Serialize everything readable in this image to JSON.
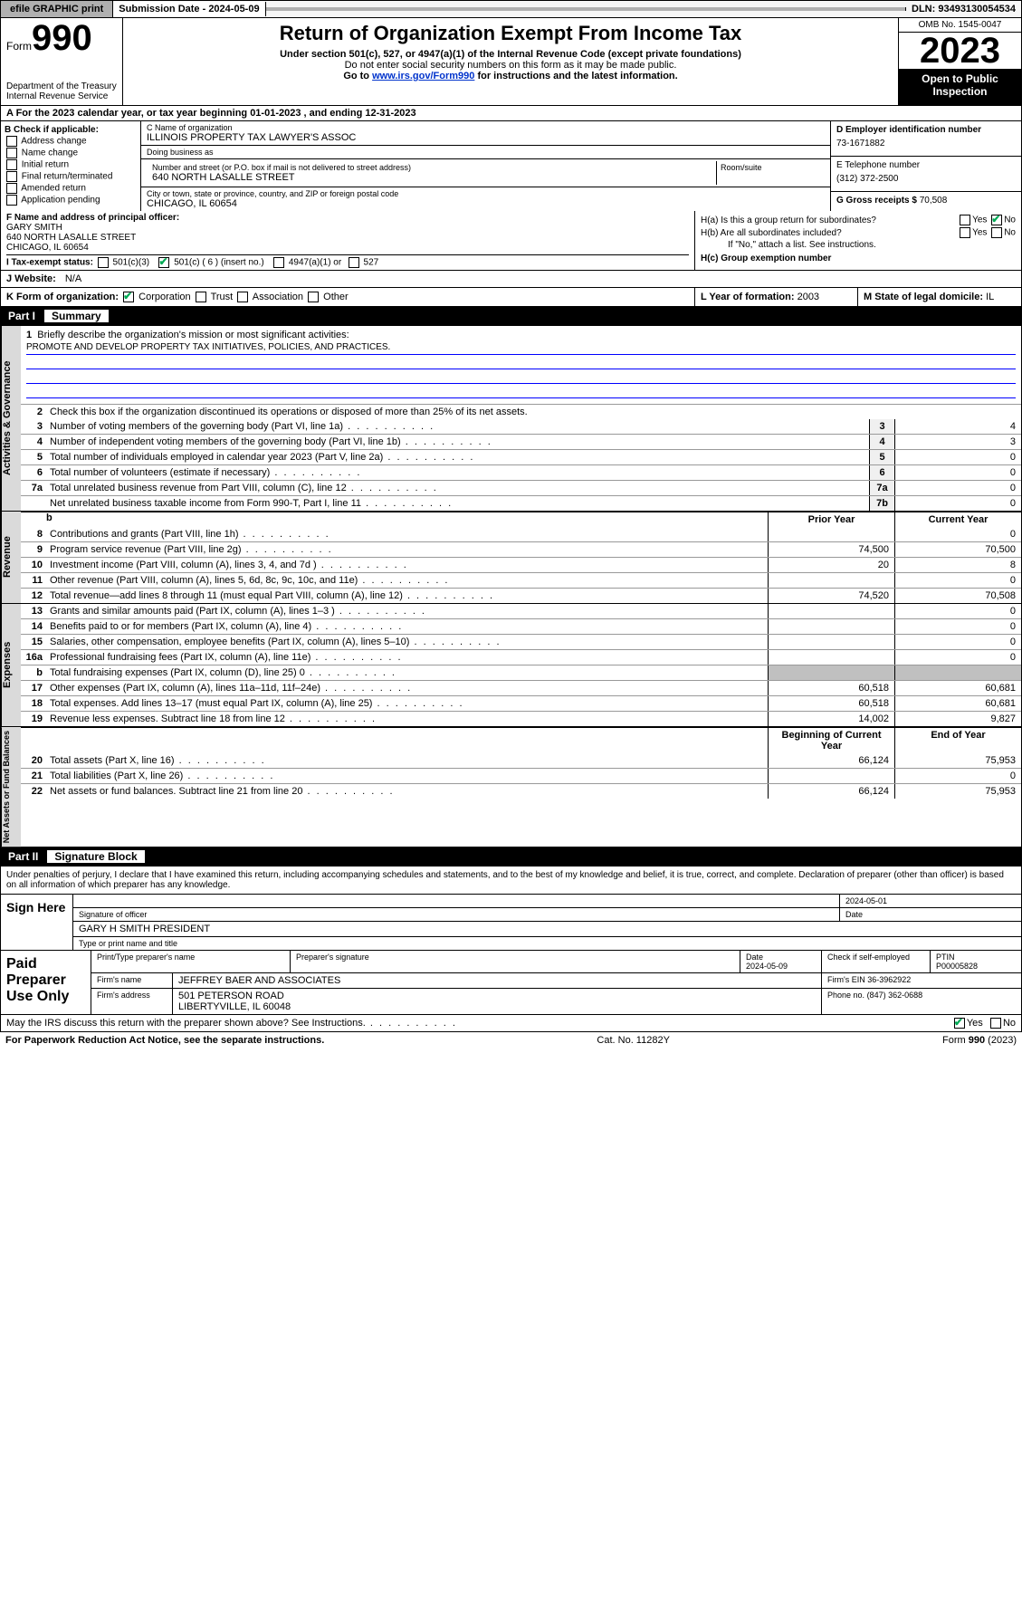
{
  "topbar": {
    "efile": "efile GRAPHIC print",
    "submission": "Submission Date - 2024-05-09",
    "dln": "DLN: 93493130054534"
  },
  "header": {
    "form_word": "Form",
    "form_num": "990",
    "dept": "Department of the Treasury\nInternal Revenue Service",
    "title": "Return of Organization Exempt From Income Tax",
    "sub1": "Under section 501(c), 527, or 4947(a)(1) of the Internal Revenue Code (except private foundations)",
    "sub2": "Do not enter social security numbers on this form as it may be made public.",
    "sub3_pre": "Go to ",
    "sub3_link": "www.irs.gov/Form990",
    "sub3_post": " for instructions and the latest information.",
    "omb": "OMB No. 1545-0047",
    "year": "2023",
    "open": "Open to Public Inspection"
  },
  "period": "A For the 2023 calendar year, or tax year beginning 01-01-2023    , and ending 12-31-2023",
  "boxB": {
    "label": "B Check if applicable:",
    "opts": [
      "Address change",
      "Name change",
      "Initial return",
      "Final return/terminated",
      "Amended return",
      "Application pending"
    ]
  },
  "boxC": {
    "name_lbl": "C Name of organization",
    "name": "ILLINOIS PROPERTY TAX LAWYER'S ASSOC",
    "dba_lbl": "Doing business as",
    "dba": "",
    "addr_lbl": "Number and street (or P.O. box if mail is not delivered to street address)",
    "addr": "640 NORTH LASALLE STREET",
    "room_lbl": "Room/suite",
    "city_lbl": "City or town, state or province, country, and ZIP or foreign postal code",
    "city": "CHICAGO, IL  60654"
  },
  "boxD": {
    "ein_lbl": "D Employer identification number",
    "ein": "73-1671882",
    "tel_lbl": "E Telephone number",
    "tel": "(312) 372-2500",
    "gross_lbl": "G Gross receipts $",
    "gross": "70,508"
  },
  "boxF": {
    "lbl": "F  Name and address of principal officer:",
    "name": "GARY SMITH",
    "addr": "640 NORTH LASALLE STREET",
    "city": "CHICAGO, IL  60654"
  },
  "boxH": {
    "a_lbl": "H(a)  Is this a group return for subordinates?",
    "a_yes": "Yes",
    "a_no": "No",
    "b_lbl": "H(b)  Are all subordinates included?",
    "b_yes": "Yes",
    "b_no": "No",
    "b_note": "If \"No,\" attach a list. See instructions.",
    "c_lbl": "H(c)  Group exemption number"
  },
  "boxI": {
    "lbl": "I   Tax-exempt status:",
    "o1": "501(c)(3)",
    "o2": "501(c) ( 6 ) (insert no.)",
    "o3": "4947(a)(1) or",
    "o4": "527"
  },
  "boxJ": {
    "lbl": "J   Website:",
    "val": "N/A"
  },
  "boxK": {
    "lbl": "K Form of organization:",
    "o1": "Corporation",
    "o2": "Trust",
    "o3": "Association",
    "o4": "Other"
  },
  "boxL": {
    "lbl": "L Year of formation:",
    "val": "2003"
  },
  "boxM": {
    "lbl": "M State of legal domicile:",
    "val": "IL"
  },
  "part1": {
    "num": "Part I",
    "title": "Summary",
    "q1_lbl": "Briefly describe the organization's mission or most significant activities:",
    "q1_val": "PROMOTE AND DEVELOP PROPERTY TAX INITIATIVES, POLICIES, AND PRACTICES.",
    "q2": "Check this box      if the organization discontinued its operations or disposed of more than 25% of its net assets.",
    "lines_gov": [
      {
        "n": "3",
        "t": "Number of voting members of the governing body (Part VI, line 1a)",
        "b": "3",
        "v": "4"
      },
      {
        "n": "4",
        "t": "Number of independent voting members of the governing body (Part VI, line 1b)",
        "b": "4",
        "v": "3"
      },
      {
        "n": "5",
        "t": "Total number of individuals employed in calendar year 2023 (Part V, line 2a)",
        "b": "5",
        "v": "0"
      },
      {
        "n": "6",
        "t": "Total number of volunteers (estimate if necessary)",
        "b": "6",
        "v": "0"
      },
      {
        "n": "7a",
        "t": "Total unrelated business revenue from Part VIII, column (C), line 12",
        "b": "7a",
        "v": "0"
      },
      {
        "n": "",
        "t": "Net unrelated business taxable income from Form 990-T, Part I, line 11",
        "b": "7b",
        "v": "0"
      }
    ],
    "hdr_prior": "Prior Year",
    "hdr_curr": "Current Year",
    "lines_rev": [
      {
        "n": "8",
        "t": "Contributions and grants (Part VIII, line 1h)",
        "p": "",
        "c": "0"
      },
      {
        "n": "9",
        "t": "Program service revenue (Part VIII, line 2g)",
        "p": "74,500",
        "c": "70,500"
      },
      {
        "n": "10",
        "t": "Investment income (Part VIII, column (A), lines 3, 4, and 7d )",
        "p": "20",
        "c": "8"
      },
      {
        "n": "11",
        "t": "Other revenue (Part VIII, column (A), lines 5, 6d, 8c, 9c, 10c, and 11e)",
        "p": "",
        "c": "0"
      },
      {
        "n": "12",
        "t": "Total revenue—add lines 8 through 11 (must equal Part VIII, column (A), line 12)",
        "p": "74,520",
        "c": "70,508"
      }
    ],
    "lines_exp": [
      {
        "n": "13",
        "t": "Grants and similar amounts paid (Part IX, column (A), lines 1–3 )",
        "p": "",
        "c": "0"
      },
      {
        "n": "14",
        "t": "Benefits paid to or for members (Part IX, column (A), line 4)",
        "p": "",
        "c": "0"
      },
      {
        "n": "15",
        "t": "Salaries, other compensation, employee benefits (Part IX, column (A), lines 5–10)",
        "p": "",
        "c": "0"
      },
      {
        "n": "16a",
        "t": "Professional fundraising fees (Part IX, column (A), line 11e)",
        "p": "",
        "c": "0"
      },
      {
        "n": "b",
        "t": "Total fundraising expenses (Part IX, column (D), line 25) 0",
        "p": "shade",
        "c": "shade"
      },
      {
        "n": "17",
        "t": "Other expenses (Part IX, column (A), lines 11a–11d, 11f–24e)",
        "p": "60,518",
        "c": "60,681"
      },
      {
        "n": "18",
        "t": "Total expenses. Add lines 13–17 (must equal Part IX, column (A), line 25)",
        "p": "60,518",
        "c": "60,681"
      },
      {
        "n": "19",
        "t": "Revenue less expenses. Subtract line 18 from line 12",
        "p": "14,002",
        "c": "9,827"
      }
    ],
    "hdr_begin": "Beginning of Current Year",
    "hdr_end": "End of Year",
    "lines_net": [
      {
        "n": "20",
        "t": "Total assets (Part X, line 16)",
        "p": "66,124",
        "c": "75,953"
      },
      {
        "n": "21",
        "t": "Total liabilities (Part X, line 26)",
        "p": "",
        "c": "0"
      },
      {
        "n": "22",
        "t": "Net assets or fund balances. Subtract line 21 from line 20",
        "p": "66,124",
        "c": "75,953"
      }
    ],
    "side_gov": "Activities & Governance",
    "side_rev": "Revenue",
    "side_exp": "Expenses",
    "side_net": "Net Assets or Fund Balances"
  },
  "part2": {
    "num": "Part II",
    "title": "Signature Block",
    "penalty": "Under penalties of perjury, I declare that I have examined this return, including accompanying schedules and statements, and to the best of my knowledge and belief, it is true, correct, and complete. Declaration of preparer (other than officer) is based on all information of which preparer has any knowledge.",
    "sign_here": "Sign Here",
    "sig_lbl": "Signature of officer",
    "sig_date_lbl": "Date",
    "sig_date": "2024-05-01",
    "name_lbl": "Type or print name and title",
    "name": "GARY H SMITH  PRESIDENT",
    "paid": "Paid Preparer Use Only",
    "prep_name_lbl": "Print/Type preparer's name",
    "prep_sig_lbl": "Preparer's signature",
    "prep_date_lbl": "Date",
    "prep_date": "2024-05-09",
    "prep_self_lbl": "Check       if self-employed",
    "ptin_lbl": "PTIN",
    "ptin": "P00005828",
    "firm_name_lbl": "Firm's name",
    "firm_name": "JEFFREY BAER AND ASSOCIATES",
    "firm_ein_lbl": "Firm's EIN",
    "firm_ein": "36-3962922",
    "firm_addr_lbl": "Firm's address",
    "firm_addr": "501 PETERSON ROAD",
    "firm_city": "LIBERTYVILLE, IL  60048",
    "firm_phone_lbl": "Phone no.",
    "firm_phone": "(847) 362-0688",
    "may_irs": "May the IRS discuss this return with the preparer shown above? See Instructions.",
    "may_yes": "Yes",
    "may_no": "No"
  },
  "footer": {
    "l": "For Paperwork Reduction Act Notice, see the separate instructions.",
    "c": "Cat. No. 11282Y",
    "r": "Form 990 (2023)"
  },
  "colors": {
    "header_black": "#000000",
    "shade_gray": "#c0c0c0",
    "side_gray": "#dadada",
    "link_blue": "#0033cc",
    "check_green": "#00aa55"
  }
}
